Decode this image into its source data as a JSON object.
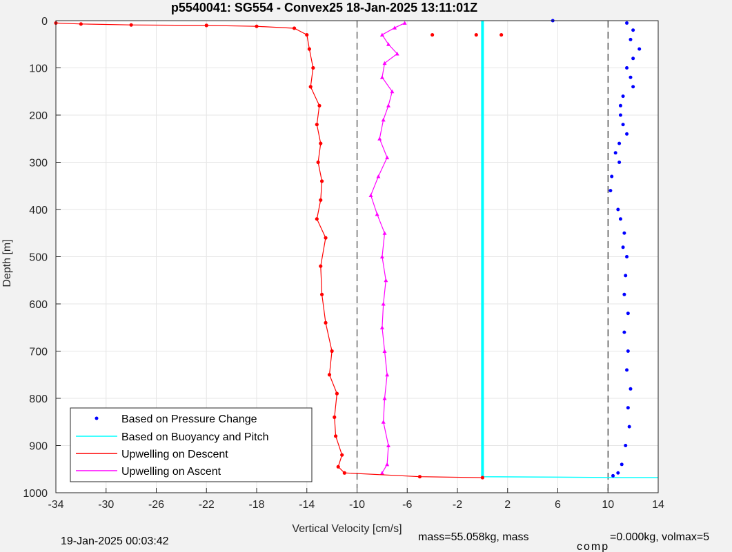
{
  "chart_data": {
    "type": "scatter",
    "title": "p5540041: SG554 - Convex25 18-Jan-2025 13:11:01Z",
    "xlabel": "Vertical Velocity [cm/s]",
    "ylabel": "Depth [m]",
    "xlim": [
      -34,
      14
    ],
    "ylim": [
      0,
      1000
    ],
    "y_reversed": true,
    "grid": true,
    "xticks": [
      "-34",
      "-30",
      "-26",
      "-22",
      "-18",
      "-14",
      "-10",
      "-6",
      "-2",
      "2",
      "6",
      "10",
      "14"
    ],
    "yticks": [
      "0",
      "100",
      "200",
      "300",
      "400",
      "500",
      "600",
      "700",
      "800",
      "900",
      "1000"
    ],
    "reference_lines": [
      -10,
      10
    ],
    "legend_position": "bottom-left",
    "series": [
      {
        "name": "Based on Pressure Change",
        "color": "#0000ff",
        "marker": "dot",
        "points": [
          [
            11.5,
            5
          ],
          [
            12.0,
            20
          ],
          [
            11.8,
            40
          ],
          [
            12.5,
            60
          ],
          [
            12.0,
            80
          ],
          [
            11.5,
            100
          ],
          [
            11.8,
            120
          ],
          [
            12.0,
            140
          ],
          [
            11.2,
            160
          ],
          [
            11.0,
            180
          ],
          [
            11.0,
            200
          ],
          [
            11.2,
            220
          ],
          [
            11.5,
            240
          ],
          [
            10.9,
            260
          ],
          [
            10.6,
            280
          ],
          [
            10.9,
            300
          ],
          [
            10.3,
            330
          ],
          [
            10.2,
            360
          ],
          [
            10.8,
            400
          ],
          [
            11.0,
            420
          ],
          [
            11.3,
            450
          ],
          [
            11.2,
            480
          ],
          [
            11.5,
            500
          ],
          [
            11.4,
            540
          ],
          [
            11.3,
            580
          ],
          [
            11.6,
            620
          ],
          [
            11.3,
            660
          ],
          [
            11.6,
            700
          ],
          [
            11.5,
            740
          ],
          [
            11.8,
            780
          ],
          [
            11.6,
            820
          ],
          [
            11.7,
            860
          ],
          [
            11.4,
            900
          ],
          [
            11.1,
            940
          ],
          [
            10.8,
            958
          ],
          [
            10.4,
            964
          ],
          [
            5.6,
            0
          ]
        ]
      },
      {
        "name": "Based on Buoyancy and Pitch",
        "color": "#00ffff",
        "marker": "line",
        "points": [
          [
            0,
            0
          ],
          [
            0,
            200
          ],
          [
            0,
            400
          ],
          [
            0,
            600
          ],
          [
            0,
            800
          ],
          [
            0,
            966
          ],
          [
            6,
            967
          ],
          [
            11,
            968
          ],
          [
            14,
            968
          ]
        ]
      },
      {
        "name": "Upwelling on Descent",
        "color": "#ff0000",
        "marker": "line-dot",
        "points": [
          [
            -34,
            5
          ],
          [
            -32,
            7
          ],
          [
            -28,
            9
          ],
          [
            -22,
            10
          ],
          [
            -18,
            12
          ],
          [
            -15,
            16
          ],
          [
            -14,
            30
          ],
          [
            -13.8,
            60
          ],
          [
            -13.5,
            100
          ],
          [
            -13.7,
            140
          ],
          [
            -13,
            180
          ],
          [
            -13.2,
            220
          ],
          [
            -12.9,
            260
          ],
          [
            -13.1,
            300
          ],
          [
            -12.8,
            340
          ],
          [
            -12.9,
            380
          ],
          [
            -13.2,
            420
          ],
          [
            -12.5,
            460
          ],
          [
            -12.9,
            520
          ],
          [
            -12.8,
            580
          ],
          [
            -12.5,
            640
          ],
          [
            -12,
            700
          ],
          [
            -12.2,
            750
          ],
          [
            -11.6,
            790
          ],
          [
            -11.8,
            840
          ],
          [
            -11.7,
            880
          ],
          [
            -11.2,
            920
          ],
          [
            -11.5,
            945
          ],
          [
            -11.0,
            958
          ],
          [
            -5,
            966
          ],
          [
            0,
            968
          ],
          [
            -0.5,
            30
          ],
          [
            -4,
            30
          ],
          [
            1.5,
            30
          ]
        ]
      },
      {
        "name": "Upwelling on Ascent",
        "color": "#ff00ff",
        "marker": "line-triangle",
        "points": [
          [
            -6.2,
            5
          ],
          [
            -7,
            15
          ],
          [
            -8,
            30
          ],
          [
            -7.5,
            50
          ],
          [
            -6.8,
            70
          ],
          [
            -7.8,
            90
          ],
          [
            -8,
            120
          ],
          [
            -7.2,
            150
          ],
          [
            -7.5,
            180
          ],
          [
            -7.9,
            210
          ],
          [
            -8.2,
            250
          ],
          [
            -7.6,
            290
          ],
          [
            -8.3,
            330
          ],
          [
            -8.9,
            370
          ],
          [
            -8.4,
            410
          ],
          [
            -7.8,
            450
          ],
          [
            -8.0,
            500
          ],
          [
            -7.7,
            550
          ],
          [
            -7.9,
            600
          ],
          [
            -8.0,
            650
          ],
          [
            -7.8,
            700
          ],
          [
            -7.6,
            750
          ],
          [
            -7.8,
            800
          ],
          [
            -7.9,
            850
          ],
          [
            -7.5,
            900
          ],
          [
            -7.6,
            940
          ],
          [
            -8.0,
            958
          ]
        ]
      }
    ]
  },
  "footer": {
    "date": "19-Jan-2025 00:03:42",
    "mass_text": "mass=55.058kg, mass",
    "comp_sub": "comp",
    "comp_text": "=0.000kg, volmax=5"
  }
}
